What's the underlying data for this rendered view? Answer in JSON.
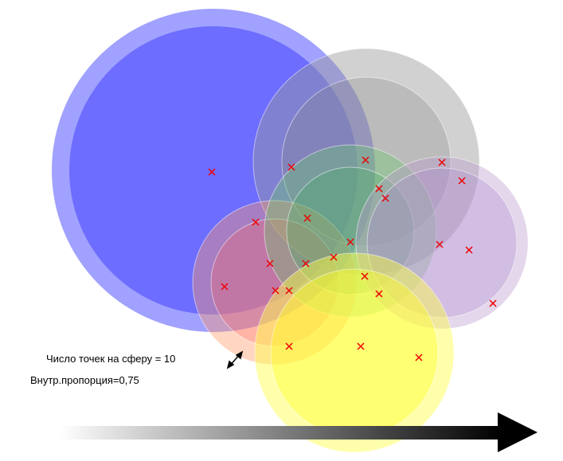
{
  "labels": {
    "points_per_sphere": "Число точек на сферу = 10",
    "inner_ratio": "Внутр.пропорция=0,75"
  }
}
